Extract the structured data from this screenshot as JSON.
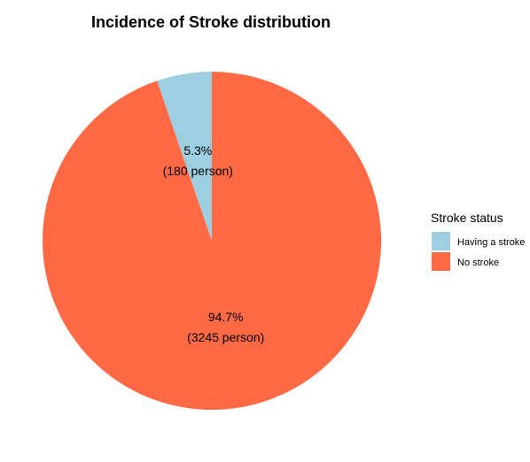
{
  "chart_data": {
    "type": "pie",
    "title": "Incidence of Stroke distribution",
    "slices": [
      {
        "name": "Having a stroke",
        "value": 180,
        "percent_label": "5.3%",
        "count_label": "(180 person)",
        "color": "#9ecfe0"
      },
      {
        "name": "No stroke",
        "value": 3245,
        "percent_label": "94.7%",
        "count_label": "(3245 person)",
        "color": "#ff6a45"
      }
    ],
    "start_angle": "12 o'clock",
    "direction": "counter-clockwise",
    "legend": {
      "title": "Stroke status",
      "position": "right",
      "entries": [
        "Having a stroke",
        "No stroke"
      ]
    }
  }
}
